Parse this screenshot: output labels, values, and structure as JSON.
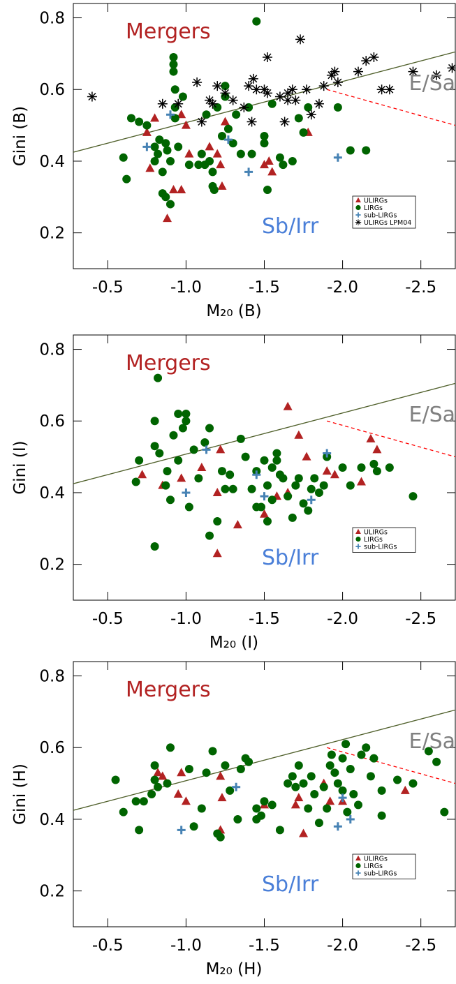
{
  "chart_data": [
    {
      "type": "scatter",
      "xlabel": "M₂₀ (B)",
      "ylabel": "Gini (B)",
      "xlim": [
        -0.28,
        -2.72
      ],
      "ylim": [
        0.1,
        0.84
      ],
      "xticks": [
        -0.5,
        {
          "value": -1,
          "label": "-1.0"
        },
        -1.5,
        {
          "value": -2,
          "label": "-2.0"
        },
        -2.5
      ],
      "yticks": [
        0.2,
        0.4,
        0.6,
        0.8
      ],
      "annotations": [
        {
          "text": "Mergers",
          "color": "#b22222"
        },
        {
          "text": "E/Sa",
          "color": "#808080"
        },
        {
          "text": "Sb/Irr",
          "color": "#4a7fd8"
        }
      ],
      "lines": [
        {
          "x": [
            -0.28,
            -2.72
          ],
          "y": [
            0.425,
            0.705
          ],
          "color": "#4f5f2a",
          "dash": false
        },
        {
          "x": [
            -1.9,
            -2.72
          ],
          "y": [
            0.6,
            0.5
          ],
          "color": "#ff0000",
          "dash": true
        }
      ],
      "series": [
        {
          "name": "ULIRGs",
          "marker": "triangle",
          "color": "#b22222",
          "x": [
            -0.75,
            -0.8,
            -0.77,
            -0.88,
            -0.92,
            -0.97,
            -0.97,
            -1.0,
            -1.02,
            -1.15,
            -1.2,
            -1.22,
            -1.23,
            -1.25,
            -1.53,
            -1.55,
            -1.5,
            -1.78
          ],
          "values": [
            0.48,
            0.52,
            0.38,
            0.24,
            0.32,
            0.32,
            0.53,
            0.5,
            0.42,
            0.44,
            0.42,
            0.39,
            0.33,
            0.51,
            0.4,
            0.37,
            0.39,
            0.48
          ]
        },
        {
          "name": "LIRGs",
          "marker": "circle",
          "color": "#006400",
          "x": [
            -0.6,
            -0.62,
            -0.65,
            -0.7,
            -0.75,
            -0.8,
            -0.8,
            -0.82,
            -0.83,
            -0.85,
            -0.85,
            -0.87,
            -0.87,
            -0.88,
            -0.9,
            -0.9,
            -0.92,
            -0.92,
            -0.92,
            -0.93,
            -0.93,
            -0.93,
            -0.95,
            -0.98,
            -1.02,
            -1.08,
            -1.1,
            -1.12,
            -1.13,
            -1.15,
            -1.17,
            -1.17,
            -1.18,
            -1.2,
            -1.23,
            -1.25,
            -1.25,
            -1.27,
            -1.3,
            -1.32,
            -1.35,
            -1.4,
            -1.42,
            -1.45,
            -1.5,
            -1.5,
            -1.52,
            -1.55,
            -1.6,
            -1.62,
            -1.68,
            -1.72,
            -1.75,
            -1.78,
            -1.97,
            -2.05,
            -2.15
          ],
          "values": [
            0.41,
            0.35,
            0.52,
            0.51,
            0.5,
            0.44,
            0.4,
            0.42,
            0.46,
            0.37,
            0.31,
            0.3,
            0.45,
            0.43,
            0.28,
            0.4,
            0.69,
            0.67,
            0.65,
            0.6,
            0.55,
            0.52,
            0.44,
            0.58,
            0.39,
            0.39,
            0.42,
            0.39,
            0.53,
            0.4,
            0.37,
            0.33,
            0.32,
            0.55,
            0.47,
            0.61,
            0.58,
            0.49,
            0.45,
            0.53,
            0.42,
            0.55,
            0.42,
            0.79,
            0.47,
            0.45,
            0.32,
            0.56,
            0.41,
            0.39,
            0.4,
            0.52,
            0.48,
            0.55,
            0.55,
            0.43,
            0.43
          ]
        },
        {
          "name": "sub-LIRGs",
          "marker": "plus",
          "color": "#4682b4",
          "x": [
            -0.75,
            -0.9,
            -1.27,
            -1.4,
            -1.97
          ],
          "values": [
            0.44,
            0.53,
            0.46,
            0.37,
            0.41
          ]
        },
        {
          "name": "ULIRGs LPM04",
          "marker": "asterisk",
          "color": "#000000",
          "x": [
            -0.4,
            -0.85,
            -0.95,
            -1.07,
            -1.1,
            -1.15,
            -1.17,
            -1.2,
            -1.25,
            -1.3,
            -1.37,
            -1.4,
            -1.42,
            -1.43,
            -1.45,
            -1.5,
            -1.52,
            -1.52,
            -1.6,
            -1.63,
            -1.65,
            -1.65,
            -1.68,
            -1.7,
            -1.73,
            -1.77,
            -1.8,
            -1.85,
            -1.88,
            -1.93,
            -1.95,
            -1.97,
            -2.1,
            -2.15,
            -2.2,
            -2.25,
            -2.3,
            -2.45,
            -2.6,
            -2.7
          ],
          "values": [
            0.58,
            0.56,
            0.56,
            0.62,
            0.51,
            0.57,
            0.56,
            0.61,
            0.59,
            0.57,
            0.55,
            0.61,
            0.51,
            0.63,
            0.6,
            0.6,
            0.59,
            0.69,
            0.58,
            0.51,
            0.57,
            0.59,
            0.6,
            0.57,
            0.74,
            0.6,
            0.53,
            0.56,
            0.61,
            0.64,
            0.65,
            0.62,
            0.65,
            0.68,
            0.69,
            0.6,
            0.6,
            0.65,
            0.64,
            0.66
          ]
        }
      ]
    },
    {
      "type": "scatter",
      "xlabel": "M₂₀ (I)",
      "ylabel": "Gini (I)",
      "xlim": [
        -0.28,
        -2.72
      ],
      "ylim": [
        0.1,
        0.84
      ],
      "xticks": [
        -0.5,
        {
          "value": -1,
          "label": "-1.0"
        },
        -1.5,
        {
          "value": -2,
          "label": "-2.0"
        },
        -2.5
      ],
      "yticks": [
        0.2,
        0.4,
        0.6,
        0.8
      ],
      "annotations": [
        {
          "text": "Mergers",
          "color": "#b22222"
        },
        {
          "text": "E/Sa",
          "color": "#808080"
        },
        {
          "text": "Sb/Irr",
          "color": "#4a7fd8"
        }
      ],
      "lines": [
        {
          "x": [
            -0.28,
            -2.72
          ],
          "y": [
            0.425,
            0.705
          ],
          "color": "#4f5f2a",
          "dash": false
        },
        {
          "x": [
            -1.9,
            -2.72
          ],
          "y": [
            0.6,
            0.5
          ],
          "color": "#ff0000",
          "dash": true
        }
      ],
      "series": [
        {
          "name": "ULIRGs",
          "marker": "triangle",
          "color": "#b22222",
          "x": [
            -0.72,
            -0.85,
            -0.97,
            -1.1,
            -1.22,
            -1.2,
            -1.2,
            -1.33,
            -1.5,
            -1.58,
            -1.65,
            -1.65,
            -1.72,
            -1.77,
            -1.9,
            -1.95,
            -2.12,
            -2.18,
            -2.22
          ],
          "values": [
            0.45,
            0.42,
            0.44,
            0.47,
            0.52,
            0.4,
            0.23,
            0.31,
            0.34,
            0.39,
            0.4,
            0.64,
            0.56,
            0.5,
            0.46,
            0.45,
            0.43,
            0.55,
            0.52
          ]
        },
        {
          "name": "LIRGs",
          "marker": "circle",
          "color": "#006400",
          "x": [
            -0.7,
            -0.68,
            -0.8,
            -0.8,
            -0.8,
            -0.82,
            -0.83,
            -0.87,
            -0.88,
            -0.9,
            -0.92,
            -0.95,
            -0.95,
            -0.98,
            -1.0,
            -1.0,
            -1.02,
            -1.05,
            -1.08,
            -1.12,
            -1.15,
            -1.15,
            -1.2,
            -1.23,
            -1.25,
            -1.28,
            -1.3,
            -1.35,
            -1.38,
            -1.42,
            -1.45,
            -1.48,
            -1.5,
            -1.52,
            -1.52,
            -1.55,
            -1.55,
            -1.58,
            -1.6,
            -1.62,
            -1.65,
            -1.68,
            -1.7,
            -1.72,
            -1.75,
            -1.78,
            -1.8,
            -1.82,
            -1.85,
            -1.88,
            -1.9,
            -2.0,
            -2.05,
            -2.12,
            -2.2,
            -2.22,
            -2.3,
            -2.45,
            -1.45,
            -1.58
          ],
          "values": [
            0.49,
            0.43,
            0.25,
            0.6,
            0.53,
            0.72,
            0.51,
            0.42,
            0.46,
            0.38,
            0.56,
            0.62,
            0.49,
            0.58,
            0.62,
            0.6,
            0.36,
            0.52,
            0.44,
            0.54,
            0.58,
            0.28,
            0.32,
            0.46,
            0.41,
            0.45,
            0.41,
            0.55,
            0.5,
            0.41,
            0.36,
            0.36,
            0.49,
            0.42,
            0.32,
            0.38,
            0.47,
            0.49,
            0.45,
            0.44,
            0.39,
            0.33,
            0.42,
            0.44,
            0.37,
            0.35,
            0.41,
            0.44,
            0.4,
            0.42,
            0.5,
            0.47,
            0.42,
            0.47,
            0.48,
            0.46,
            0.47,
            0.39,
            0.46,
            0.51
          ]
        },
        {
          "name": "sub-LIRGs",
          "marker": "plus",
          "color": "#4682b4",
          "x": [
            -1.0,
            -1.13,
            -1.45,
            -1.5,
            -1.8,
            -1.9
          ],
          "values": [
            0.4,
            0.52,
            0.45,
            0.39,
            0.38,
            0.51
          ]
        }
      ]
    },
    {
      "type": "scatter",
      "xlabel": "M₂₀ (H)",
      "ylabel": "Gini (H)",
      "xlim": [
        -0.28,
        -2.72
      ],
      "ylim": [
        0.1,
        0.84
      ],
      "xticks": [
        -0.5,
        {
          "value": -1,
          "label": "-1.0"
        },
        -1.5,
        {
          "value": -2,
          "label": "-2.0"
        },
        -2.5
      ],
      "yticks": [
        0.2,
        0.4,
        0.6,
        0.8
      ],
      "annotations": [
        {
          "text": "Mergers",
          "color": "#b22222"
        },
        {
          "text": "E/Sa",
          "color": "#808080"
        },
        {
          "text": "Sb/Irr",
          "color": "#4a7fd8"
        }
      ],
      "lines": [
        {
          "x": [
            -0.28,
            -2.72
          ],
          "y": [
            0.425,
            0.705
          ],
          "color": "#4f5f2a",
          "dash": false
        },
        {
          "x": [
            -1.9,
            -2.72
          ],
          "y": [
            0.6,
            0.5
          ],
          "color": "#ff0000",
          "dash": true
        }
      ],
      "series": [
        {
          "name": "ULIRGs",
          "marker": "triangle",
          "color": "#b22222",
          "x": [
            -0.82,
            -0.85,
            -0.95,
            -0.97,
            -1.0,
            -1.22,
            -1.23,
            -1.22,
            -1.5,
            -1.7,
            -1.72,
            -1.75,
            -1.88,
            -1.92,
            -2.0,
            -2.4
          ],
          "values": [
            0.53,
            0.52,
            0.47,
            0.53,
            0.45,
            0.52,
            0.46,
            0.37,
            0.44,
            0.44,
            0.46,
            0.36,
            0.5,
            0.45,
            0.45,
            0.48
          ]
        },
        {
          "name": "LIRGs",
          "marker": "circle",
          "color": "#006400",
          "x": [
            -0.55,
            -0.6,
            -0.68,
            -0.7,
            -0.73,
            -0.78,
            -0.8,
            -0.8,
            -0.82,
            -0.88,
            -0.9,
            -1.02,
            -1.05,
            -1.1,
            -1.13,
            -1.17,
            -1.2,
            -1.22,
            -1.25,
            -1.28,
            -1.33,
            -1.35,
            -1.38,
            -1.4,
            -1.45,
            -1.48,
            -1.5,
            -1.6,
            -1.65,
            -1.68,
            -1.7,
            -1.72,
            -1.75,
            -1.78,
            -1.8,
            -1.82,
            -1.85,
            -1.88,
            -1.9,
            -1.92,
            -1.93,
            -1.95,
            -1.97,
            -2.0,
            -2.0,
            -2.02,
            -2.03,
            -2.05,
            -2.07,
            -2.1,
            -2.12,
            -2.15,
            -2.18,
            -2.2,
            -2.25,
            -2.25,
            -2.35,
            -2.45,
            -2.55,
            -2.6,
            -2.65,
            -1.45,
            -1.55
          ],
          "values": [
            0.51,
            0.42,
            0.45,
            0.37,
            0.45,
            0.47,
            0.51,
            0.55,
            0.49,
            0.5,
            0.6,
            0.54,
            0.38,
            0.43,
            0.53,
            0.59,
            0.36,
            0.35,
            0.55,
            0.48,
            0.4,
            0.54,
            0.57,
            0.56,
            0.43,
            0.41,
            0.45,
            0.37,
            0.5,
            0.52,
            0.49,
            0.55,
            0.5,
            0.43,
            0.52,
            0.47,
            0.39,
            0.49,
            0.43,
            0.55,
            0.58,
            0.53,
            0.5,
            0.48,
            0.57,
            0.61,
            0.42,
            0.54,
            0.47,
            0.44,
            0.58,
            0.6,
            0.52,
            0.57,
            0.41,
            0.48,
            0.51,
            0.5,
            0.59,
            0.56,
            0.42,
            0.4,
            0.44
          ]
        },
        {
          "name": "sub-LIRGs",
          "marker": "plus",
          "color": "#4682b4",
          "x": [
            -0.97,
            -1.32,
            -1.97,
            -2.0,
            -2.05
          ],
          "values": [
            0.37,
            0.49,
            0.38,
            0.46,
            0.4
          ]
        }
      ]
    }
  ]
}
